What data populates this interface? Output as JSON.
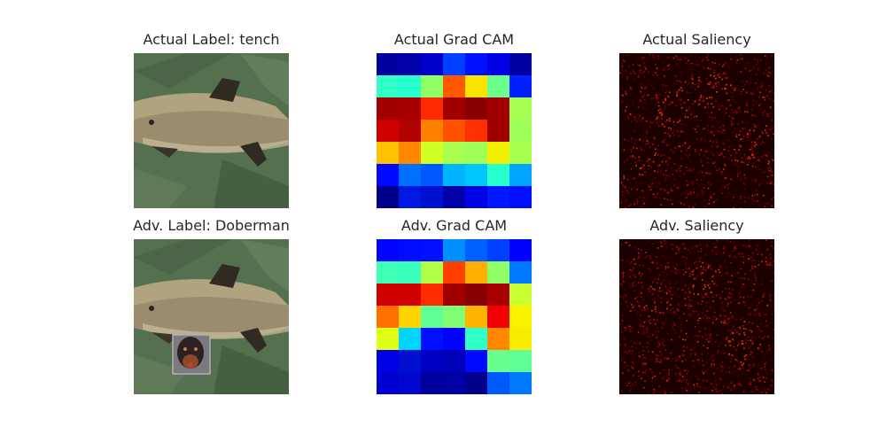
{
  "panels": {
    "actual_image_title": "Actual Label: tench",
    "actual_gradcam_title": "Actual Grad CAM",
    "actual_saliency_title": "Actual Saliency",
    "adv_image_title": "Adv. Label: Doberman",
    "adv_gradcam_title": "Adv. Grad CAM",
    "adv_saliency_title": "Adv. Saliency"
  },
  "gradcam": {
    "actual": [
      [
        "#00009f",
        "#0000a8",
        "#0000cc",
        "#0040ff",
        "#0010ff",
        "#0000e6",
        "#0000a0"
      ],
      [
        "#30ffc6",
        "#28ffce",
        "#90ff66",
        "#ff5800",
        "#f8e400",
        "#6cff8a",
        "#0020ff"
      ],
      [
        "#a00000",
        "#a80000",
        "#ff2800",
        "#a00000",
        "#880000",
        "#a00000",
        "#a4ff52"
      ],
      [
        "#d00000",
        "#b00000",
        "#ff8000",
        "#ff5000",
        "#ff3000",
        "#a00000",
        "#a0ff56"
      ],
      [
        "#ffc000",
        "#ff8800",
        "#d0ff26",
        "#a8ff4e",
        "#a0ff56",
        "#f0f000",
        "#a8ff4e"
      ],
      [
        "#0008ff",
        "#0070ff",
        "#0058ff",
        "#00b4ff",
        "#00c8ff",
        "#28ffce",
        "#00a4ff"
      ],
      [
        "#00008c",
        "#0018e0",
        "#0010d0",
        "#0000a8",
        "#0004e4",
        "#0018ff",
        "#0010ff"
      ]
    ],
    "adv": [
      [
        "#0004ff",
        "#000cff",
        "#0010ff",
        "#0090ff",
        "#0060ff",
        "#0040ff",
        "#0000ff"
      ],
      [
        "#40ffb6",
        "#38ffbe",
        "#b0ff46",
        "#ff4000",
        "#ffb000",
        "#90ff66",
        "#0078ff"
      ],
      [
        "#d00000",
        "#d00000",
        "#ff2c00",
        "#a00000",
        "#880000",
        "#a80000",
        "#c8ff2e"
      ],
      [
        "#ff7000",
        "#ffd400",
        "#60ff96",
        "#80ff76",
        "#ffb400",
        "#f00000",
        "#f8f400"
      ],
      [
        "#e0ff16",
        "#00d4ff",
        "#0010ff",
        "#0004ff",
        "#30ffc6",
        "#ff8800",
        "#f8ec00"
      ],
      [
        "#0000e4",
        "#0010d0",
        "#0000c0",
        "#0000b8",
        "#0008ff",
        "#68ff8e",
        "#60ff96"
      ],
      [
        "#0000d0",
        "#0008d0",
        "#00009c",
        "#0000a4",
        "#00008c",
        "#0058ff",
        "#0078ff"
      ]
    ]
  }
}
